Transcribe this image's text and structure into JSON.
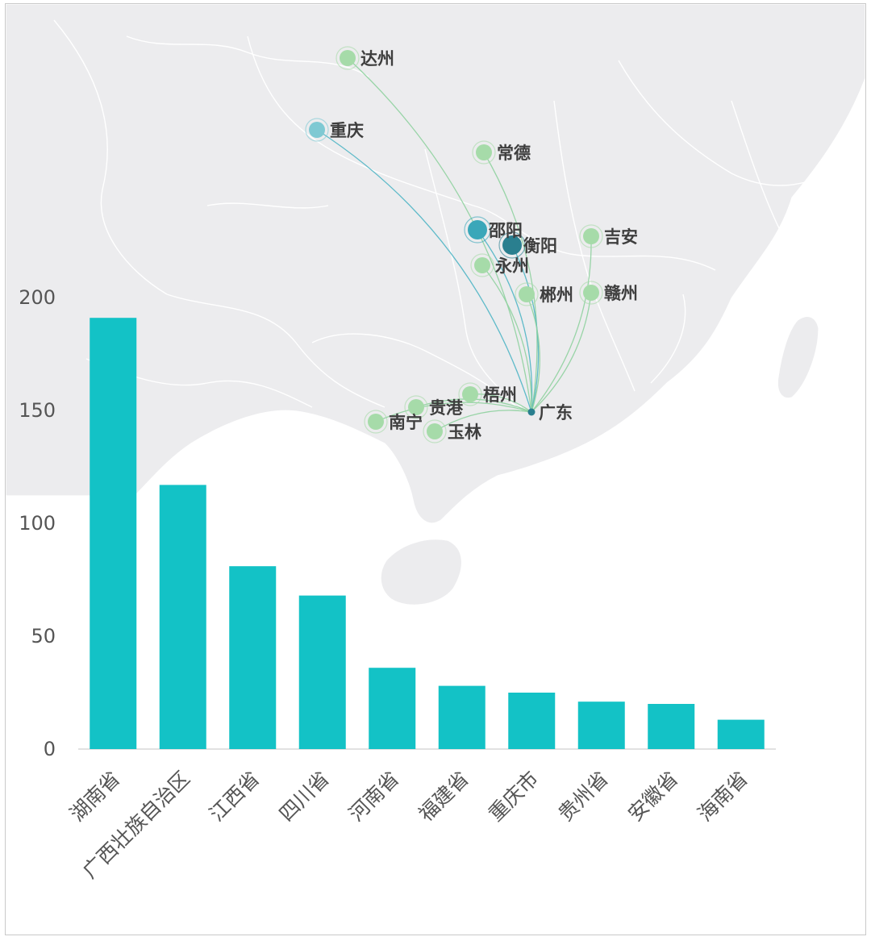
{
  "colors": {
    "bar": "#13c2c6",
    "map_land": "#ececee",
    "map_border": "#ffffff",
    "route_green": "#8fd19e",
    "route_teal": "#4fb5c4",
    "node_green": "#a6dba9",
    "node_teal": "#3aa7b9",
    "node_dark": "#2a7f8f",
    "axis_text": "#555555"
  },
  "map": {
    "destination": "广东",
    "cities": [
      {
        "name": "达州",
        "style": "green"
      },
      {
        "name": "重庆",
        "style": "light-teal"
      },
      {
        "name": "常德",
        "style": "green"
      },
      {
        "name": "邵阳",
        "style": "teal"
      },
      {
        "name": "衡阳",
        "style": "dark"
      },
      {
        "name": "吉安",
        "style": "green"
      },
      {
        "name": "永州",
        "style": "green"
      },
      {
        "name": "郴州",
        "style": "green"
      },
      {
        "name": "赣州",
        "style": "green"
      },
      {
        "name": "梧州",
        "style": "green"
      },
      {
        "name": "贵港",
        "style": "green"
      },
      {
        "name": "南宁",
        "style": "green"
      },
      {
        "name": "玉林",
        "style": "green"
      }
    ]
  },
  "chart_data": {
    "type": "bar",
    "categories": [
      "湖南省",
      "广西壮族自治区",
      "江西省",
      "四川省",
      "河南省",
      "福建省",
      "重庆市",
      "贵州省",
      "安徽省",
      "海南省"
    ],
    "values": [
      191,
      117,
      81,
      68,
      36,
      28,
      25,
      21,
      20,
      13
    ],
    "yticks": [
      0,
      50,
      100,
      150,
      200
    ],
    "ylim": [
      0,
      200
    ],
    "grid": false
  }
}
